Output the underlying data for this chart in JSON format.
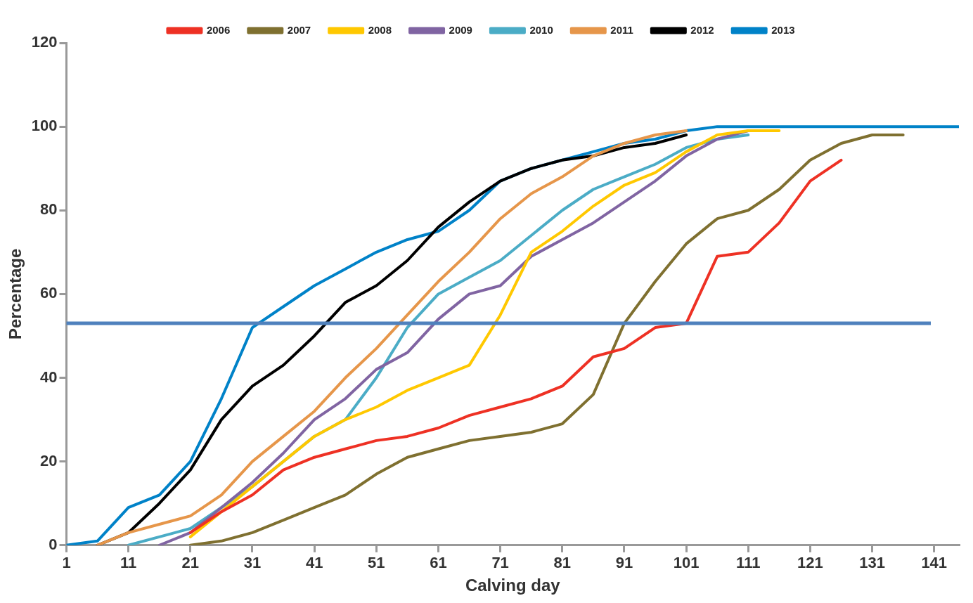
{
  "chart_data": {
    "type": "line",
    "xlabel": "Calving day",
    "ylabel": "Percentage",
    "x": [
      1,
      6,
      11,
      16,
      21,
      26,
      31,
      36,
      41,
      46,
      51,
      56,
      61,
      66,
      71,
      76,
      81,
      86,
      91,
      96,
      101,
      106,
      111,
      116,
      121,
      126,
      131,
      136,
      141,
      145
    ],
    "xlim": [
      1,
      145
    ],
    "xticks": [
      1,
      11,
      21,
      31,
      41,
      51,
      61,
      71,
      81,
      91,
      101,
      111,
      121,
      131,
      141
    ],
    "ylim": [
      0,
      120
    ],
    "yticks": [
      0,
      20,
      40,
      60,
      80,
      100,
      120
    ],
    "grid": false,
    "legend": "top",
    "marker": "none",
    "line_style": "solid",
    "ref_lines": [
      {
        "axis": "y",
        "value": 53,
        "color": "#4f81bd"
      }
    ],
    "series": [
      {
        "name": "2006",
        "color": "#ee3124",
        "values": [
          null,
          null,
          null,
          null,
          3,
          8,
          12,
          18,
          21,
          23,
          25,
          26,
          28,
          31,
          33,
          35,
          38,
          45,
          47,
          52,
          53,
          69,
          70,
          77,
          87,
          92,
          null,
          null,
          null,
          null
        ]
      },
      {
        "name": "2007",
        "color": "#7f7030",
        "values": [
          null,
          null,
          null,
          null,
          0,
          1,
          3,
          6,
          9,
          12,
          17,
          21,
          23,
          25,
          26,
          27,
          29,
          36,
          53,
          63,
          72,
          78,
          80,
          85,
          92,
          96,
          98,
          98,
          null,
          null
        ]
      },
      {
        "name": "2008",
        "color": "#ffc800",
        "values": [
          null,
          null,
          null,
          null,
          2,
          8,
          14,
          20,
          26,
          30,
          33,
          37,
          40,
          43,
          55,
          70,
          75,
          81,
          86,
          89,
          94,
          98,
          99,
          99,
          null,
          null,
          null,
          null,
          null,
          null
        ]
      },
      {
        "name": "2009",
        "color": "#8064a2",
        "values": [
          null,
          null,
          null,
          0,
          3,
          9,
          15,
          22,
          30,
          35,
          42,
          46,
          54,
          60,
          62,
          69,
          73,
          77,
          82,
          87,
          93,
          97,
          99,
          null,
          null,
          null,
          null,
          null,
          null,
          null
        ]
      },
      {
        "name": "2010",
        "color": "#4bacc6",
        "values": [
          null,
          null,
          0,
          2,
          4,
          9,
          14,
          20,
          26,
          30,
          40,
          52,
          60,
          64,
          68,
          74,
          80,
          85,
          88,
          91,
          95,
          97,
          98,
          null,
          null,
          null,
          null,
          null,
          null,
          null
        ]
      },
      {
        "name": "2011",
        "color": "#e6964a",
        "values": [
          null,
          0,
          3,
          5,
          7,
          12,
          20,
          26,
          32,
          40,
          47,
          55,
          63,
          70,
          78,
          84,
          88,
          93,
          96,
          98,
          99,
          null,
          null,
          null,
          null,
          null,
          null,
          null,
          null,
          null
        ]
      },
      {
        "name": "2012",
        "color": "#000000",
        "values": [
          null,
          0,
          3,
          10,
          18,
          30,
          38,
          43,
          50,
          58,
          62,
          68,
          76,
          82,
          87,
          90,
          92,
          93,
          95,
          96,
          98,
          null,
          null,
          null,
          null,
          null,
          null,
          null,
          null,
          null
        ]
      },
      {
        "name": "2013",
        "color": "#0082c8",
        "values": [
          0,
          1,
          9,
          12,
          20,
          35,
          52,
          57,
          62,
          66,
          70,
          73,
          75,
          80,
          87,
          90,
          92,
          94,
          96,
          97,
          99,
          100,
          100,
          100,
          100,
          100,
          100,
          100,
          100,
          100
        ]
      }
    ]
  }
}
